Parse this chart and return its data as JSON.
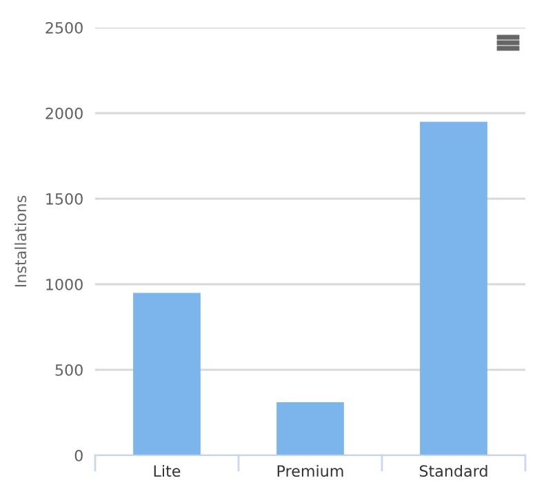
{
  "chart_data": {
    "type": "bar",
    "ylabel": "Installations",
    "categories": [
      "Lite",
      "Premium",
      "Standard"
    ],
    "series": [
      {
        "color": "#7cb5ec",
        "values": [
          950,
          310,
          1950
        ]
      }
    ],
    "ylim": [
      0,
      2500
    ],
    "yticks": [
      0,
      500,
      1000,
      1500,
      2000,
      2500
    ],
    "grid": "y",
    "legend": false
  }
}
